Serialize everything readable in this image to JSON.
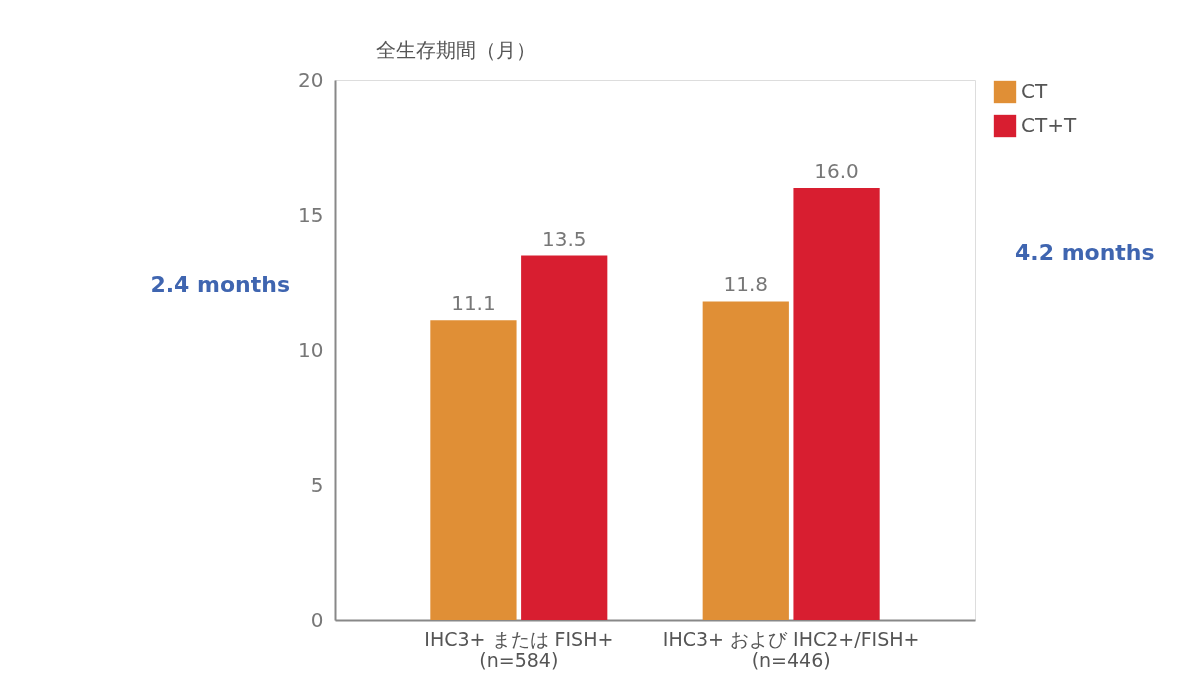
{
  "chart_data": {
    "type": "bar",
    "ylabel": "全生存期間（月）",
    "categories": [
      "IHC3+ または FISH+\n(n=584)",
      "IHC3+ および IHC2+/FISH+\n(n=446)"
    ],
    "series": [
      {
        "name": "CT",
        "color": "#e08f36",
        "values": [
          11.1,
          11.8
        ]
      },
      {
        "name": "CT+T",
        "color": "#d81e30",
        "values": [
          13.5,
          16.0
        ]
      }
    ],
    "ylim": [
      0,
      20
    ],
    "yticks": [
      0,
      5,
      10,
      15,
      20
    ],
    "grid": false,
    "legend": "top right",
    "value_labels": [
      [
        "11.1",
        "11.8"
      ],
      [
        "13.5",
        "16.0"
      ]
    ],
    "annotations": [
      "2.4 months",
      "4.2 months"
    ]
  }
}
